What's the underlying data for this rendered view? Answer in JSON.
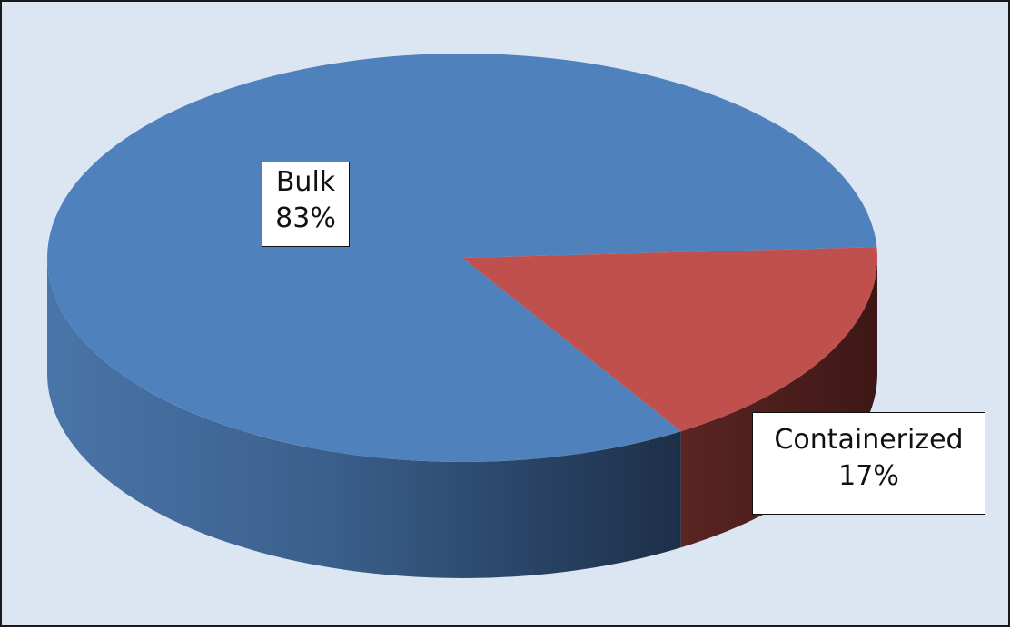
{
  "chart_data": {
    "type": "pie",
    "style": "3d",
    "title": "",
    "slices": [
      {
        "label": "Bulk",
        "value": 83,
        "display": "83%",
        "color": "#4f81bd"
      },
      {
        "label": "Containerized",
        "value": 17,
        "display": "17%",
        "color": "#c0504d"
      }
    ],
    "legend": "none",
    "background_color": "#dce6f2"
  }
}
